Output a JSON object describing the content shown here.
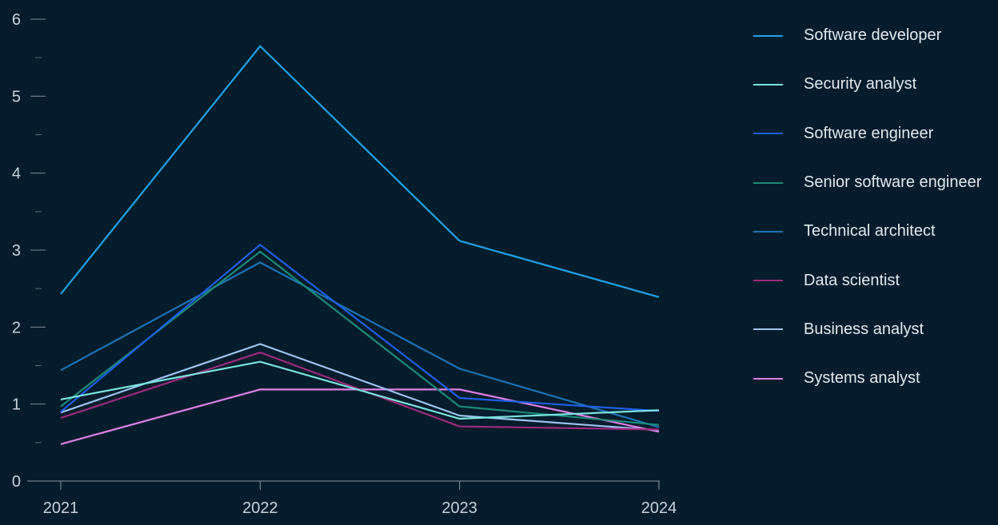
{
  "chart_data": {
    "type": "line",
    "title": "",
    "xlabel": "",
    "ylabel": "",
    "categories": [
      "2021",
      "2022",
      "2023",
      "2024"
    ],
    "ylim": [
      0,
      6
    ],
    "yticks": [
      0,
      1,
      2,
      3,
      4,
      5,
      6
    ],
    "grid": false,
    "legend_position": "right",
    "series": [
      {
        "name": "Software developer",
        "color": "#1fa3e8",
        "values": [
          2.43,
          5.65,
          3.12,
          2.39
        ]
      },
      {
        "name": "Security analyst",
        "color": "#7ae5e0",
        "values": [
          1.06,
          1.55,
          0.81,
          0.92
        ]
      },
      {
        "name": "Software engineer",
        "color": "#1f5fe8",
        "values": [
          0.9,
          3.07,
          1.08,
          0.91
        ]
      },
      {
        "name": "Senior software engineer",
        "color": "#1b8a78",
        "values": [
          0.97,
          2.98,
          0.97,
          0.73
        ]
      },
      {
        "name": "Technical architect",
        "color": "#1a74b5",
        "values": [
          1.44,
          2.84,
          1.46,
          0.7
        ]
      },
      {
        "name": "Data scientist",
        "color": "#a02a7e",
        "values": [
          0.82,
          1.67,
          0.71,
          0.67
        ]
      },
      {
        "name": "Business analyst",
        "color": "#9fc4f2",
        "values": [
          0.89,
          1.78,
          0.85,
          0.66
        ]
      },
      {
        "name": "Systems analyst",
        "color": "#e07ee6",
        "values": [
          0.48,
          1.19,
          1.19,
          0.64
        ]
      }
    ]
  }
}
